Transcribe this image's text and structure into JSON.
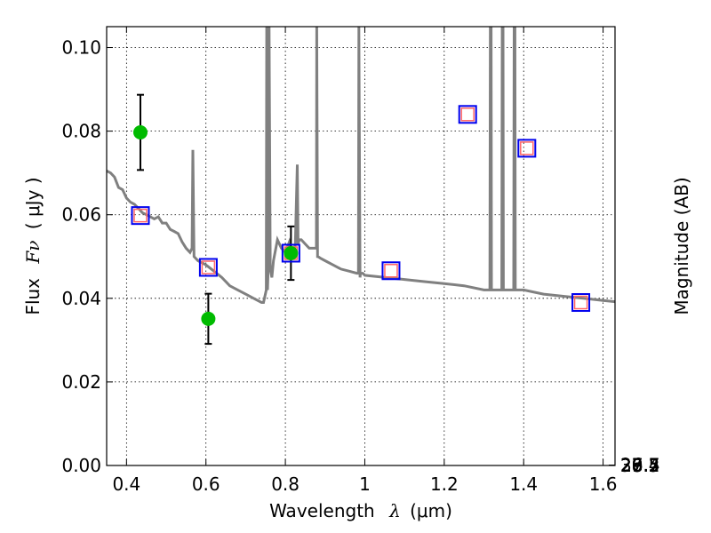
{
  "chart_data": {
    "type": "scatter",
    "xlabel": "Wavelength",
    "xlabel_symbol": "λ",
    "xlabel_unit": "(μm)",
    "ylabel": "Flux",
    "ylabel_symbol": "Fν",
    "ylabel_unit": "( μJy )",
    "y2label": "Magnitude (AB)",
    "xlim": [
      0.35,
      1.63
    ],
    "ylim": [
      0.0,
      0.105
    ],
    "grid": true,
    "x_ticks": [
      0.4,
      0.6,
      0.8,
      1.0,
      1.2,
      1.4,
      1.6
    ],
    "x_tick_labels": [
      "0.4",
      "0.6",
      "0.8",
      "1",
      "1.2",
      "1.4",
      "1.6"
    ],
    "y_ticks": [
      0.0,
      0.02,
      0.04,
      0.06,
      0.08,
      0.1
    ],
    "y_tick_labels": [
      "0.00",
      "0.02",
      "0.04",
      "0.06",
      "0.08",
      "0.10"
    ],
    "y2_ticks": [
      26.4,
      26.5,
      26.7,
      27,
      27.2,
      27.5,
      28,
      28.5,
      29,
      30
    ],
    "y2_tick_labels": [
      "26.4",
      "26.5",
      "26.7",
      "27",
      "27.2",
      "27.5",
      "28",
      "28.5",
      "29",
      "30"
    ],
    "colors": {
      "model": "#808080",
      "observed": "#00bb00",
      "errorbar": "#000000",
      "synthetic_square": "#0000ee",
      "synthetic_inner": "#ff6666",
      "grid": "#000000"
    },
    "series": [
      {
        "kind": "line",
        "x": [
          0.35,
          0.36,
          0.37,
          0.38,
          0.39,
          0.4,
          0.41,
          0.42,
          0.43,
          0.44,
          0.45,
          0.46,
          0.47,
          0.48,
          0.49,
          0.5,
          0.51,
          0.52,
          0.53,
          0.54,
          0.55,
          0.56,
          0.565,
          0.567,
          0.57,
          0.575,
          0.58,
          0.6,
          0.62,
          0.64,
          0.66,
          0.68,
          0.7,
          0.72,
          0.74,
          0.745,
          0.752,
          0.753,
          0.755,
          0.757,
          0.759,
          0.762,
          0.766,
          0.77,
          0.78,
          0.785,
          0.79,
          0.8,
          0.81,
          0.82,
          0.825,
          0.83,
          0.832,
          0.835,
          0.84,
          0.85,
          0.86,
          0.87,
          0.878,
          0.879,
          0.881,
          0.882,
          0.89,
          0.9,
          0.92,
          0.94,
          0.96,
          0.98,
          0.984,
          0.985,
          0.988,
          0.989,
          0.995,
          1.0,
          1.05,
          1.1,
          1.15,
          1.2,
          1.25,
          1.3,
          1.315,
          1.316,
          1.318,
          1.319,
          1.345,
          1.346,
          1.348,
          1.349,
          1.375,
          1.376,
          1.378,
          1.379,
          1.4,
          1.45,
          1.5,
          1.55,
          1.6,
          1.63
        ],
        "y": [
          0.0705,
          0.07,
          0.069,
          0.0665,
          0.066,
          0.064,
          0.063,
          0.0625,
          0.0615,
          0.0605,
          0.06,
          0.0595,
          0.059,
          0.0595,
          0.058,
          0.058,
          0.0565,
          0.056,
          0.0555,
          0.0535,
          0.052,
          0.051,
          0.052,
          0.0755,
          0.05,
          0.0495,
          0.049,
          0.048,
          0.0465,
          0.045,
          0.043,
          0.042,
          0.041,
          0.04,
          0.039,
          0.039,
          0.042,
          0.105,
          0.042,
          0.048,
          0.105,
          0.047,
          0.045,
          0.049,
          0.054,
          0.053,
          0.052,
          0.051,
          0.0535,
          0.05,
          0.053,
          0.072,
          0.053,
          0.054,
          0.054,
          0.053,
          0.052,
          0.052,
          0.052,
          0.105,
          0.05,
          0.05,
          0.0495,
          0.049,
          0.048,
          0.047,
          0.0465,
          0.046,
          0.046,
          0.105,
          0.045,
          0.046,
          0.046,
          0.0455,
          0.045,
          0.0445,
          0.044,
          0.0435,
          0.043,
          0.042,
          0.042,
          0.105,
          0.105,
          0.042,
          0.042,
          0.105,
          0.105,
          0.042,
          0.042,
          0.105,
          0.105,
          0.042,
          0.042,
          0.041,
          0.0405,
          0.04,
          0.0395,
          0.0392
        ]
      },
      {
        "kind": "errorbar_points",
        "points": [
          {
            "x": 0.435,
            "y": 0.0797,
            "yerr": 0.009
          },
          {
            "x": 0.606,
            "y": 0.0351,
            "yerr": 0.006
          },
          {
            "x": 0.814,
            "y": 0.0508,
            "yerr": 0.0064
          }
        ]
      },
      {
        "kind": "synthetic_squares",
        "points": [
          {
            "x": 0.435,
            "y": 0.0598
          },
          {
            "x": 0.606,
            "y": 0.0474
          },
          {
            "x": 0.814,
            "y": 0.0508
          },
          {
            "x": 1.066,
            "y": 0.0466
          },
          {
            "x": 1.259,
            "y": 0.084
          },
          {
            "x": 1.408,
            "y": 0.0759
          },
          {
            "x": 1.544,
            "y": 0.039
          }
        ]
      }
    ]
  }
}
